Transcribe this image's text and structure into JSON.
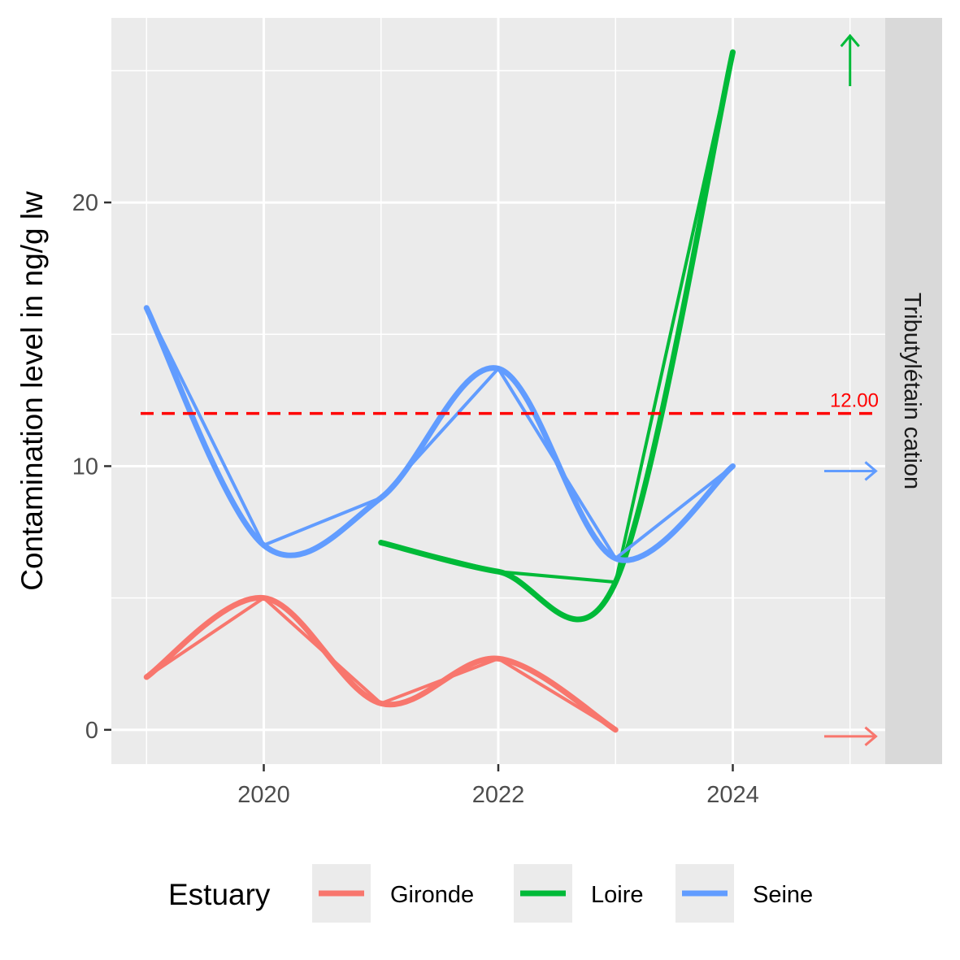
{
  "chart_data": {
    "type": "line",
    "title": "",
    "xlabel": "",
    "ylabel": "Contamination level in ng/g lw",
    "facet_label": "Tributylétain cation",
    "xlim": [
      2018.7,
      2025.3
    ],
    "ylim": [
      -1.3,
      27.0
    ],
    "x_ticks": [
      2020,
      2022,
      2024
    ],
    "x_tick_labels": [
      "2020",
      "2022",
      "2024"
    ],
    "y_ticks": [
      0,
      10,
      20
    ],
    "y_tick_labels": [
      "0",
      "10",
      "20"
    ],
    "grid": true,
    "threshold": {
      "value": 12.0,
      "label": "12.00",
      "color": "#ff0000",
      "style": "dashed"
    },
    "series": [
      {
        "name": "Gironde",
        "color": "#f8766d",
        "trend": "flat",
        "x": [
          2019,
          2020,
          2021,
          2022,
          2023
        ],
        "values": [
          2.0,
          5.0,
          1.0,
          2.7,
          0.0
        ]
      },
      {
        "name": "Loire",
        "color": "#00ba38",
        "trend": "up",
        "x": [
          2021,
          2022,
          2023,
          2024
        ],
        "values": [
          7.1,
          6.0,
          5.6,
          25.7
        ]
      },
      {
        "name": "Seine",
        "color": "#619cff",
        "trend": "flat",
        "x": [
          2019,
          2020,
          2021,
          2022,
          2023,
          2024
        ],
        "values": [
          16.0,
          7.0,
          8.8,
          13.7,
          6.5,
          10.0
        ]
      }
    ],
    "legend": {
      "title": "Estuary",
      "position": "bottom",
      "entries": [
        "Gironde",
        "Loire",
        "Seine"
      ]
    }
  }
}
